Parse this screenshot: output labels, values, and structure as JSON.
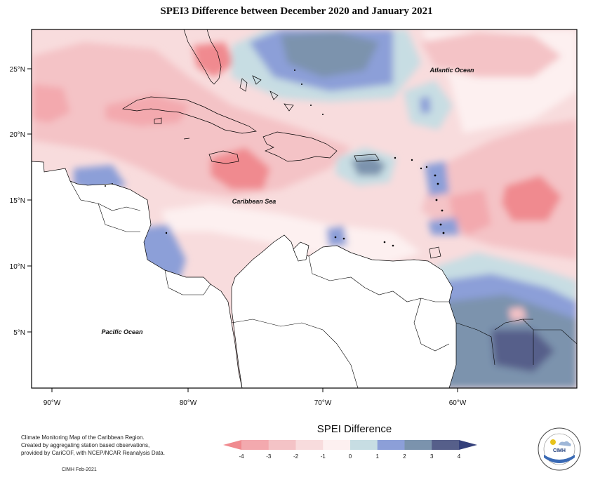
{
  "title": "SPEI3 Difference between December 2020 and January 2021",
  "map": {
    "labels": {
      "atlantic": "Atlantic Ocean",
      "caribbean": "Caribbean Sea",
      "pacific": "Pacific Ocean"
    },
    "lon_ticks": [
      "90°W",
      "80°W",
      "70°W",
      "60°W"
    ],
    "lat_ticks": [
      "25°N",
      "20°N",
      "15°N",
      "10°N",
      "5°N"
    ],
    "extent": {
      "lon": [
        -92,
        -52
      ],
      "lat": [
        1,
        28
      ]
    }
  },
  "legend": {
    "title": "SPEI Difference",
    "ticks": [
      "-4",
      "-3",
      "-2",
      "-1",
      "0",
      "1",
      "2",
      "3",
      "4"
    ],
    "colors": [
      "#f08a8f",
      "#f3a9ae",
      "#f4c3c6",
      "#f8dcdd",
      "#fdf0f0",
      "#c7dde3",
      "#8c9fd8",
      "#7b93ad",
      "#565f8a",
      "#34407a"
    ]
  },
  "credits": {
    "lines": [
      "Climate Monitoring Map of the Caribbean Region.",
      "Created by aggregating station based observations,",
      "provided by CariCOF, with NCEP/NCAR Reanalysis Data."
    ],
    "date": "CIMH Feb-2021"
  },
  "logo": {
    "text": "CIMH"
  }
}
